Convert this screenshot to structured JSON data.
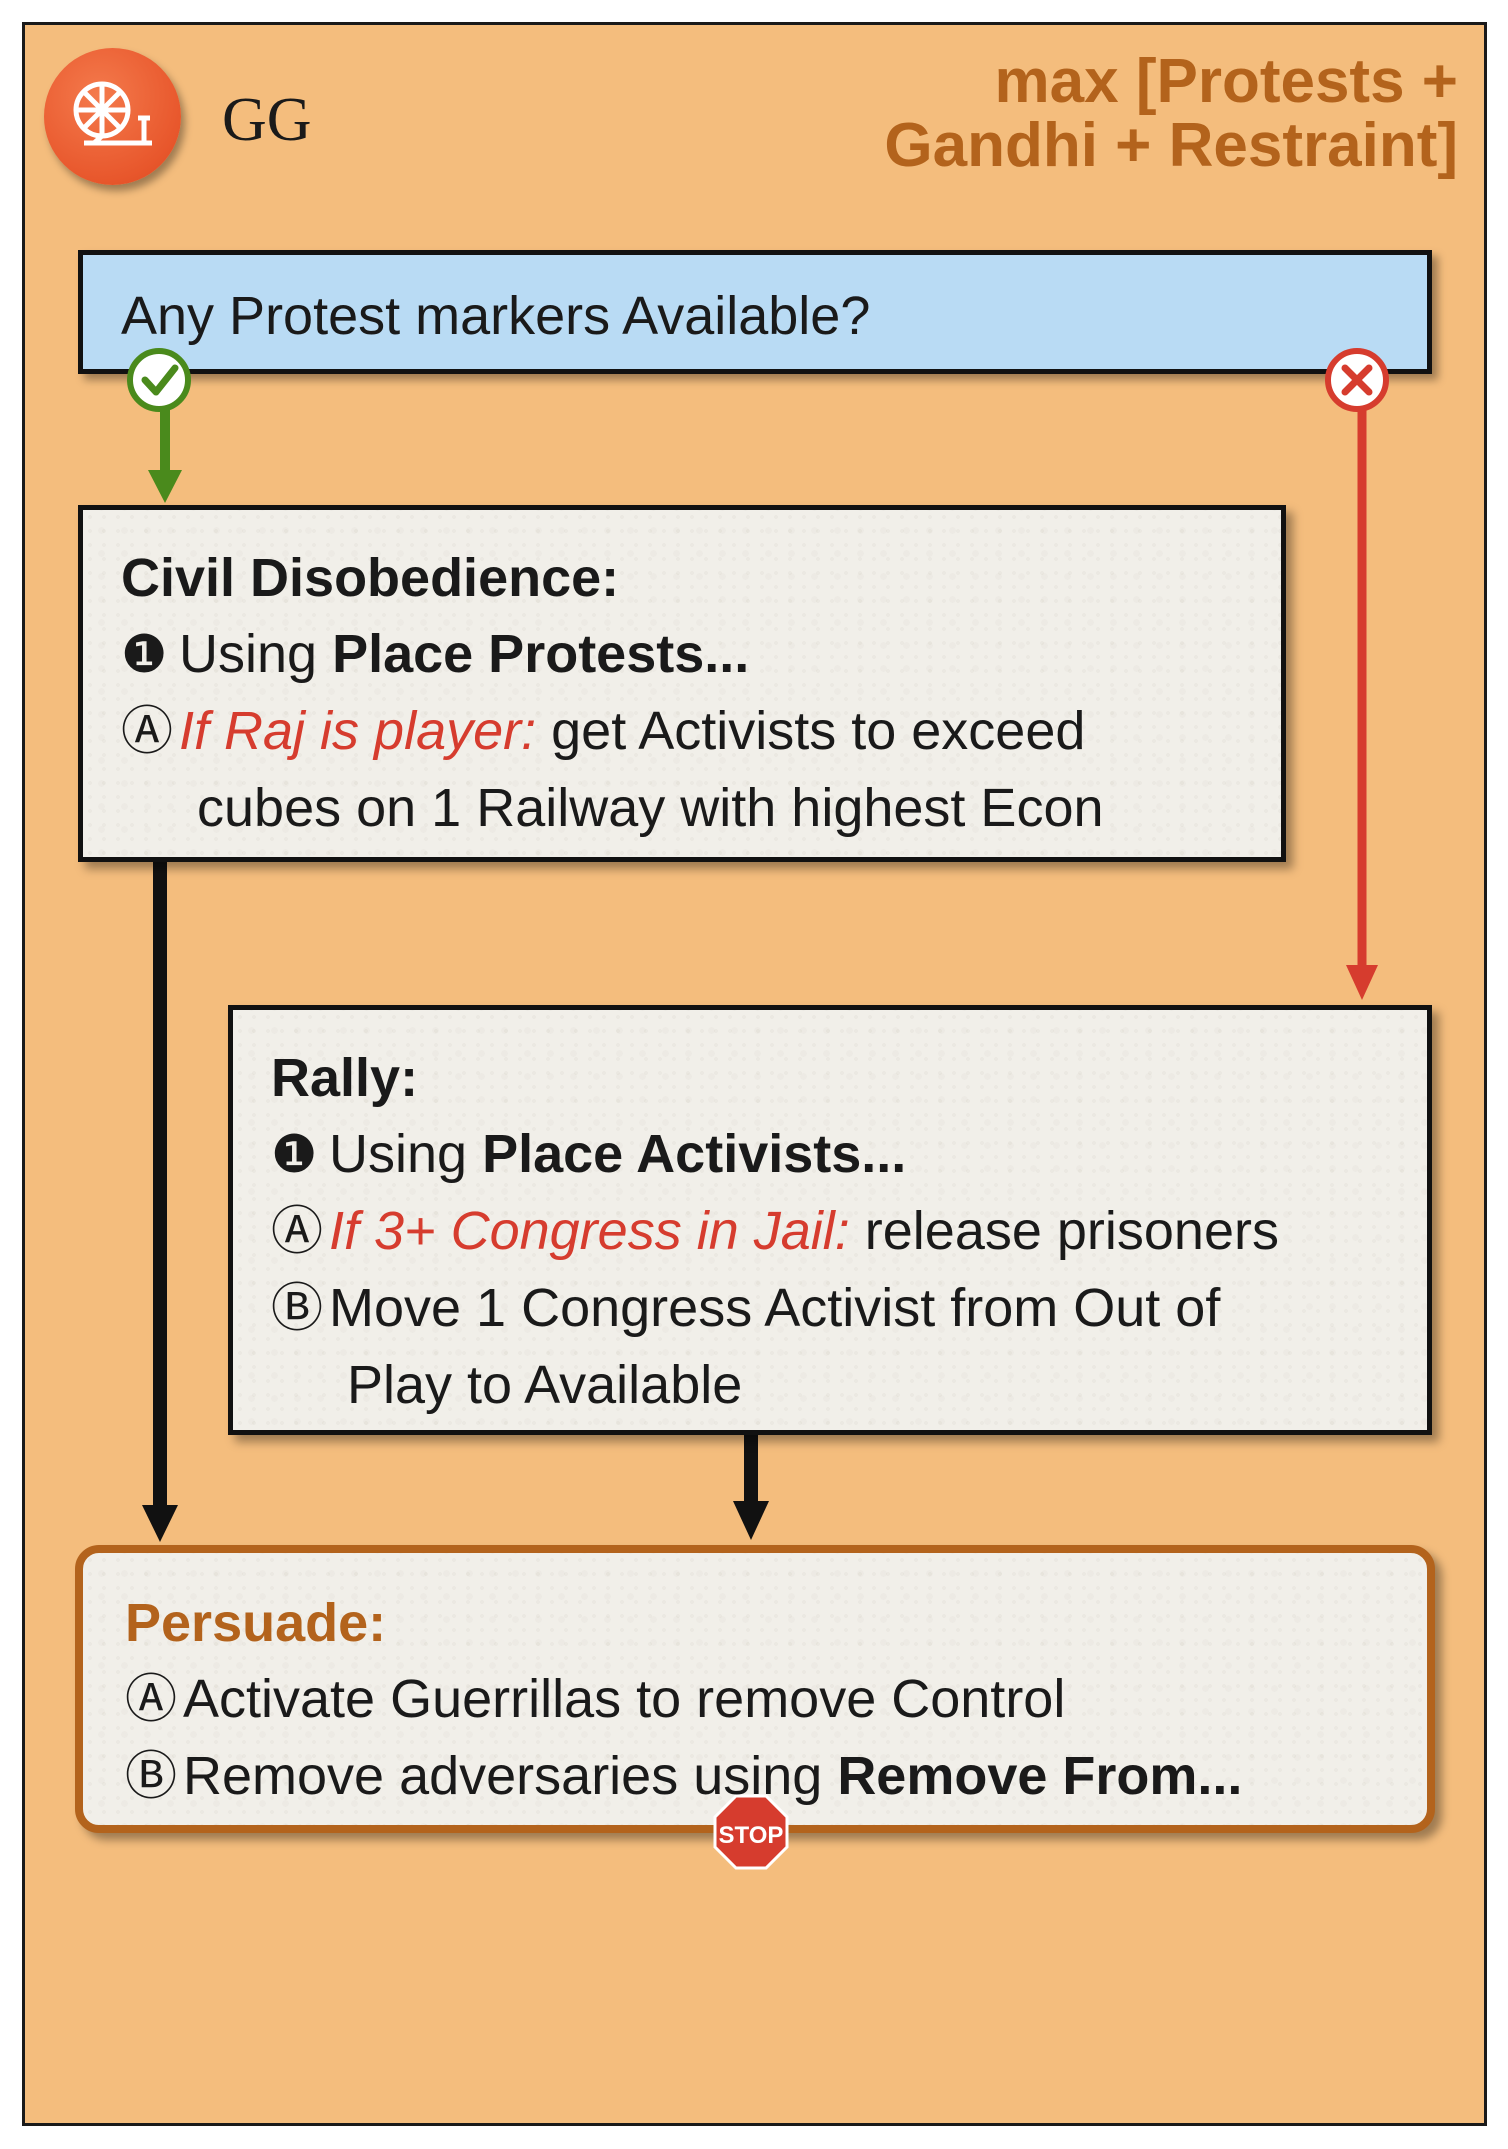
{
  "faction": "GG",
  "priority": [
    "max [Protests +",
    "Gandhi + Restraint]"
  ],
  "question": "Any Protest markers Available?",
  "civil": {
    "title": "Civil Disobedience:",
    "step1_mark": "❶",
    "step1_pre": "Using ",
    "step1_bold": "Place Protests...",
    "a_mark": "Ⓐ",
    "a_cond": "If Raj is player:",
    "a_text1": " get Activists to exceed",
    "a_text2": "cubes on 1 Railway with highest Econ"
  },
  "rally": {
    "title": "Rally:",
    "step1_mark": "❶",
    "step1_pre": "Using ",
    "step1_bold": "Place Activists...",
    "a_mark": "Ⓐ",
    "a_cond": "If 3+ Congress in Jail:",
    "a_text": " release prisoners",
    "b_mark": "Ⓑ",
    "b_text1": "Move 1 Congress Activist from Out of",
    "b_text2": "Play to Available"
  },
  "persuade": {
    "title": "Persuade:",
    "a_mark": "Ⓐ",
    "a_text": "Activate Guerrillas to remove Control",
    "b_mark": "Ⓑ",
    "b_text_pre": "Remove adversaries using ",
    "b_text_bold": "Remove From..."
  },
  "stop_label": "STOP",
  "colors": {
    "card": "#f4bd7d",
    "accent": "#b3631c",
    "question": "#b9dbf4",
    "yes": "#4a8a1c",
    "no": "#d63c2e",
    "logo": "#e8572c"
  },
  "icons": [
    "spinning-wheel-icon",
    "check-icon",
    "x-icon",
    "stop-sign-icon"
  ]
}
